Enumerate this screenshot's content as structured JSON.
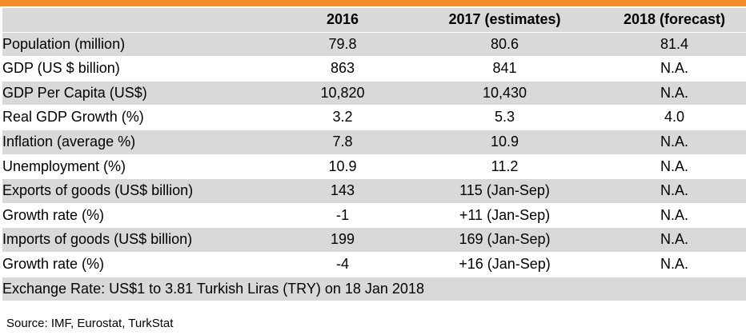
{
  "table": {
    "headers": [
      "",
      "2016",
      "2017 (estimates)",
      "2018 (forecast)"
    ],
    "rows": [
      {
        "label": "Population (million)",
        "values": [
          "79.8",
          "80.6",
          "81.4"
        ]
      },
      {
        "label": "GDP (US $ billion)",
        "values": [
          "863",
          "841",
          "N.A."
        ]
      },
      {
        "label": "GDP Per Capita (US$)",
        "values": [
          "10,820",
          "10,430",
          "N.A."
        ]
      },
      {
        "label": "Real GDP Growth (%)",
        "values": [
          "3.2",
          "5.3",
          "4.0"
        ]
      },
      {
        "label": "Inflation (average %)",
        "values": [
          "7.8",
          "10.9",
          "N.A."
        ]
      },
      {
        "label": "Unemployment (%)",
        "values": [
          "10.9",
          "11.2",
          "N.A."
        ]
      },
      {
        "label": "Exports of goods (US$ billion)",
        "values": [
          "143",
          "115 (Jan-Sep)",
          "N.A."
        ]
      },
      {
        "label": "Growth rate (%)",
        "values": [
          "-1",
          "+11 (Jan-Sep)",
          "N.A."
        ]
      },
      {
        "label": "Imports of goods (US$ billion)",
        "values": [
          "199",
          "169 (Jan-Sep)",
          "N.A."
        ]
      },
      {
        "label": "Growth rate (%)",
        "values": [
          "-4",
          "+16 (Jan-Sep)",
          "N.A."
        ]
      }
    ],
    "exchange_rate": "Exchange Rate: US$1 to 3.81 Turkish Liras (TRY) on 18 Jan 2018"
  },
  "source": "Source: IMF, Eurostat, TurkStat",
  "colors": {
    "accent_bar": "#f28c28",
    "shaded_row": "#d9d9d9"
  }
}
